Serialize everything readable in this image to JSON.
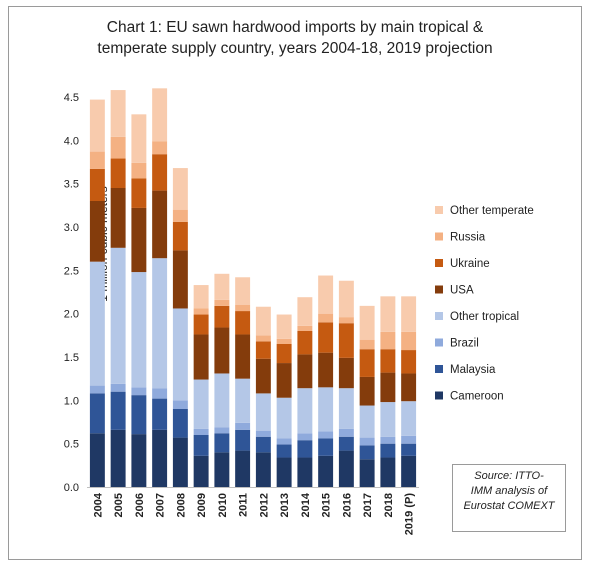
{
  "chart_data": {
    "type": "bar",
    "stacked": true,
    "title": "Chart 1: EU sawn hardwood imports by main tropical & temperate supply country, years 2004-18, 2019 projection",
    "title_lines": [
      "Chart 1: EU sawn hardwood imports by main tropical &",
      "temperate supply country, years 2004-18, 2019 projection"
    ],
    "ylabel": "1 million cubic meters",
    "xlabel": "",
    "ylim": [
      0,
      4.5
    ],
    "yticks": [
      "0.0",
      "0.5",
      "1.0",
      "1.5",
      "2.0",
      "2.5",
      "3.0",
      "3.5",
      "4.0",
      "4.5"
    ],
    "grid": false,
    "legend_position": "right",
    "categories": [
      "2004",
      "2005",
      "2006",
      "2007",
      "2008",
      "2009",
      "2010",
      "2011",
      "2012",
      "2013",
      "2014",
      "2015",
      "2016",
      "2017",
      "2018",
      "2019 (P)"
    ],
    "series": [
      {
        "name": "Cameroon",
        "color": "#1f3864",
        "values": [
          0.62,
          0.66,
          0.61,
          0.66,
          0.57,
          0.36,
          0.4,
          0.42,
          0.4,
          0.34,
          0.34,
          0.36,
          0.42,
          0.32,
          0.34,
          0.36
        ]
      },
      {
        "name": "Malaysia",
        "color": "#2f5597",
        "values": [
          0.46,
          0.44,
          0.45,
          0.36,
          0.33,
          0.24,
          0.22,
          0.24,
          0.18,
          0.15,
          0.2,
          0.2,
          0.16,
          0.16,
          0.16,
          0.14
        ]
      },
      {
        "name": "Brazil",
        "color": "#8faadc",
        "values": [
          0.09,
          0.09,
          0.09,
          0.12,
          0.1,
          0.07,
          0.07,
          0.08,
          0.07,
          0.07,
          0.08,
          0.08,
          0.09,
          0.09,
          0.08,
          0.09
        ]
      },
      {
        "name": "Other tropical",
        "color": "#b4c7e7",
        "values": [
          1.43,
          1.57,
          1.33,
          1.5,
          1.06,
          0.57,
          0.62,
          0.51,
          0.43,
          0.47,
          0.52,
          0.51,
          0.47,
          0.37,
          0.4,
          0.4
        ]
      },
      {
        "name": "USA",
        "color": "#843c0c",
        "values": [
          0.7,
          0.69,
          0.74,
          0.78,
          0.67,
          0.52,
          0.53,
          0.51,
          0.4,
          0.4,
          0.39,
          0.4,
          0.35,
          0.33,
          0.34,
          0.32
        ]
      },
      {
        "name": "Ukraine",
        "color": "#c55a11",
        "values": [
          0.37,
          0.34,
          0.34,
          0.42,
          0.33,
          0.23,
          0.25,
          0.27,
          0.2,
          0.22,
          0.27,
          0.35,
          0.4,
          0.32,
          0.27,
          0.27
        ]
      },
      {
        "name": "Russia",
        "color": "#f4b183",
        "values": [
          0.2,
          0.25,
          0.18,
          0.15,
          0.14,
          0.07,
          0.07,
          0.07,
          0.07,
          0.06,
          0.06,
          0.1,
          0.07,
          0.11,
          0.2,
          0.21
        ]
      },
      {
        "name": "Other temperate",
        "color": "#f8cbad",
        "values": [
          0.6,
          0.54,
          0.56,
          0.61,
          0.48,
          0.27,
          0.3,
          0.32,
          0.33,
          0.28,
          0.33,
          0.44,
          0.42,
          0.39,
          0.41,
          0.41
        ]
      }
    ],
    "source_lines": [
      "Source: ITTO-",
      "IMM analysis of",
      "Eurostat COMEXT"
    ]
  }
}
